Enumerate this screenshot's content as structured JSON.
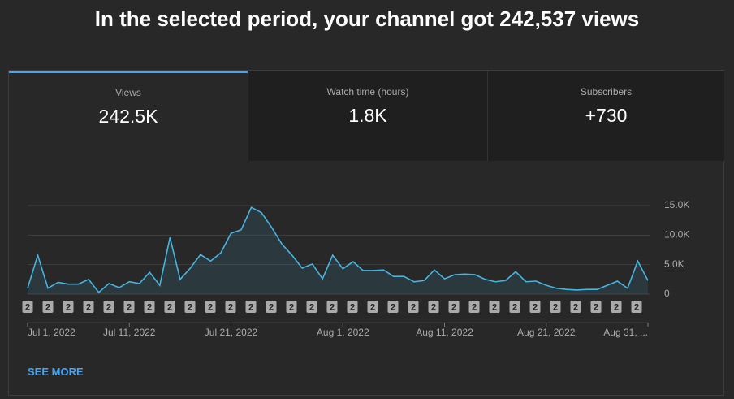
{
  "header": {
    "title": "In the selected period, your channel got 242,537 views"
  },
  "tabs": [
    {
      "label": "Views",
      "value": "242.5K"
    },
    {
      "label": "Watch time (hours)",
      "value": "1.8K"
    },
    {
      "label": "Subscribers",
      "value": "+730"
    }
  ],
  "chart_data": {
    "type": "line",
    "categories": [
      "Jul 1, 2022",
      null,
      null,
      null,
      null,
      null,
      null,
      null,
      null,
      null,
      "Jul 11, 2022",
      null,
      null,
      null,
      null,
      null,
      null,
      null,
      null,
      null,
      "Jul 21, 2022",
      null,
      null,
      null,
      null,
      null,
      null,
      null,
      null,
      null,
      null,
      "Aug 1, 2022",
      null,
      null,
      null,
      null,
      null,
      null,
      null,
      null,
      null,
      "Aug 11, 2022",
      null,
      null,
      null,
      null,
      null,
      null,
      null,
      null,
      null,
      "Aug 21, 2022",
      null,
      null,
      null,
      null,
      null,
      null,
      null,
      null,
      null,
      "Aug 31, ..."
    ],
    "series": [
      {
        "name": "Views",
        "color": "#45b5e0",
        "values": [
          1000,
          6600,
          1000,
          2000,
          1700,
          1700,
          2500,
          300,
          1800,
          1100,
          2100,
          1800,
          3700,
          1500,
          9600,
          2500,
          4400,
          6700,
          5600,
          7000,
          10300,
          10900,
          14700,
          13800,
          11300,
          8500,
          6600,
          4400,
          5100,
          2600,
          6600,
          4300,
          5500,
          4000,
          4000,
          4100,
          3000,
          3000,
          2100,
          2300,
          4100,
          2600,
          3300,
          3400,
          3300,
          2500,
          2100,
          2300,
          3800,
          2100,
          2200,
          1500,
          1000,
          800,
          700,
          800,
          800,
          1500,
          2200,
          1000,
          5600,
          2300
        ]
      }
    ],
    "ylim": [
      0,
      15000
    ],
    "yticks": [
      0,
      {
        "value": 5000,
        "label": "5.0K"
      },
      {
        "value": 10000,
        "label": "10.0K"
      },
      {
        "value": 15000,
        "label": "15.0K"
      }
    ],
    "grid": true,
    "markers": [
      "2",
      "2",
      "2",
      "2",
      "2",
      "2",
      "2",
      "2",
      "2",
      "2",
      "2",
      "2",
      "2",
      "2",
      "2",
      "2",
      "2",
      "2",
      "2",
      "2",
      "2",
      "2",
      "2",
      "2",
      "2",
      "2",
      "2",
      "2",
      "2",
      "2",
      "2"
    ]
  },
  "footer": {
    "link": "SEE MORE"
  }
}
